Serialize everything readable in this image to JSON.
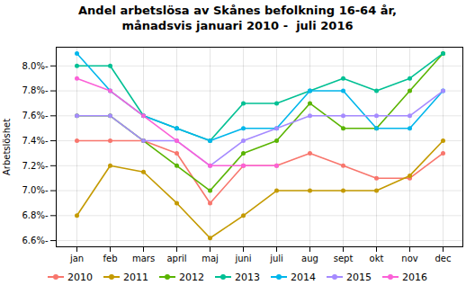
{
  "chart_data": {
    "type": "line",
    "title": "Andel arbetslösa av Skånes befolkning 16-64 år,\nmånadsvis januari 2010 -  juli 2016",
    "ylabel": "Arbetslöshet",
    "categories": [
      "jan",
      "feb",
      "mars",
      "april",
      "maj",
      "juni",
      "juli",
      "aug",
      "sept",
      "okt",
      "nov",
      "dec"
    ],
    "series": [
      {
        "name": "2010",
        "color": "#F8766D",
        "values": [
          7.4,
          7.4,
          7.4,
          7.3,
          6.9,
          7.2,
          7.2,
          7.3,
          7.2,
          7.1,
          7.1,
          7.3
        ]
      },
      {
        "name": "2011",
        "color": "#C49A00",
        "values": [
          6.8,
          7.2,
          7.15,
          6.9,
          6.62,
          6.8,
          7.0,
          7.0,
          7.0,
          7.0,
          7.12,
          7.4
        ]
      },
      {
        "name": "2012",
        "color": "#59B400",
        "values": [
          7.6,
          7.6,
          7.4,
          7.2,
          7.0,
          7.3,
          7.4,
          7.7,
          7.5,
          7.5,
          7.8,
          8.1
        ]
      },
      {
        "name": "2013",
        "color": "#00C094",
        "values": [
          8.0,
          8.0,
          7.6,
          7.5,
          7.4,
          7.7,
          7.7,
          7.8,
          7.9,
          7.8,
          7.9,
          8.1
        ]
      },
      {
        "name": "2014",
        "color": "#00B6EB",
        "values": [
          8.1,
          7.8,
          7.6,
          7.5,
          7.4,
          7.5,
          7.5,
          7.8,
          7.8,
          7.5,
          7.5,
          7.8
        ]
      },
      {
        "name": "2015",
        "color": "#A58AFF",
        "values": [
          7.6,
          7.6,
          7.4,
          7.4,
          7.2,
          7.4,
          7.5,
          7.6,
          7.6,
          7.6,
          7.6,
          7.8
        ]
      },
      {
        "name": "2016",
        "color": "#FB61D7",
        "values": [
          7.9,
          7.8,
          7.6,
          7.4,
          7.2,
          7.2,
          7.2,
          null,
          null,
          null,
          null,
          null
        ]
      }
    ],
    "ylim": [
      6.55,
      8.15
    ],
    "yticks": [
      {
        "value": 6.6,
        "label": "6.6%-"
      },
      {
        "value": 6.8,
        "label": "6.8%-"
      },
      {
        "value": 7.0,
        "label": "7.0%-"
      },
      {
        "value": 7.2,
        "label": "7.2%-"
      },
      {
        "value": 7.4,
        "label": "7.4%-"
      },
      {
        "value": 7.6,
        "label": "7.6%-"
      },
      {
        "value": 7.8,
        "label": "7.8%-"
      },
      {
        "value": 8.0,
        "label": "8.0%-"
      }
    ],
    "grid": true,
    "marker": "o",
    "legend": "bottom"
  }
}
